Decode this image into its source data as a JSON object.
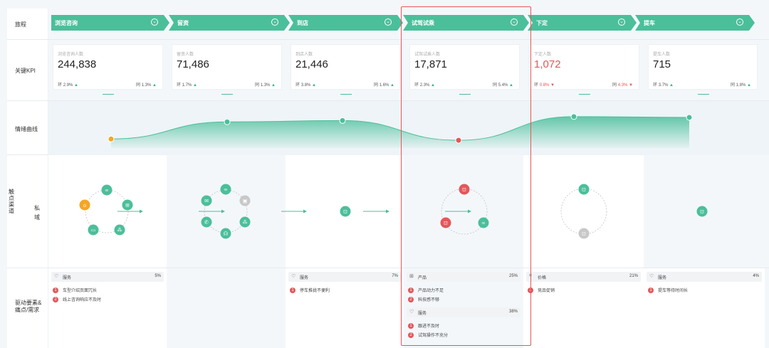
{
  "row_labels": {
    "journey": "旅程",
    "kpi": "关键KPI",
    "emotion": "情绪曲线",
    "touchpoint": "触点渠道",
    "private": "私域",
    "drivers": "驱动要素&痛点/需求"
  },
  "stages": [
    {
      "name": "浏览咨询",
      "kpi_label": "浏览咨询人数",
      "kpi_value": "244,838",
      "huan_label": "环",
      "huan": "2.9%",
      "huan_dir": "up",
      "tong_label": "同",
      "tong": "1.3%",
      "tong_dir": "up"
    },
    {
      "name": "留资",
      "kpi_label": "留资人数",
      "kpi_value": "71,486",
      "huan_label": "环",
      "huan": "1.7%",
      "huan_dir": "up",
      "tong_label": "同",
      "tong": "1.3%",
      "tong_dir": "up"
    },
    {
      "name": "到店",
      "kpi_label": "到店人数",
      "kpi_value": "21,446",
      "huan_label": "环",
      "huan": "3.8%",
      "huan_dir": "up",
      "tong_label": "同",
      "tong": "1.6%",
      "tong_dir": "up"
    },
    {
      "name": "试驾试乘",
      "kpi_label": "试驾试乘人数",
      "kpi_value": "17,871",
      "huan_label": "环",
      "huan": "2.3%",
      "huan_dir": "up",
      "tong_label": "同",
      "tong": "5.4%",
      "tong_dir": "up"
    },
    {
      "name": "下定",
      "kpi_label": "下定人数",
      "kpi_value": "1,072",
      "kpi_red": true,
      "huan_label": "环",
      "huan": "0.8%",
      "huan_dir": "down",
      "tong_label": "同",
      "tong": "4.3%",
      "tong_dir": "down"
    },
    {
      "name": "提车",
      "kpi_label": "提车人数",
      "kpi_value": "715",
      "huan_label": "环",
      "huan": "3.7%",
      "huan_dir": "up",
      "tong_label": "同",
      "tong": "1.8%",
      "tong_dir": "up"
    }
  ],
  "drivers": [
    {
      "groups": [
        {
          "icon": "heart-icon",
          "title": "服务",
          "pct": "5%",
          "items": [
            "车型介绍页面冗长",
            "线上咨询响应不及时"
          ]
        }
      ]
    },
    {
      "groups": []
    },
    {
      "groups": [
        {
          "icon": "heart-icon",
          "title": "服务",
          "pct": "7%",
          "items": [
            "停车推拢不便利"
          ]
        }
      ]
    },
    {
      "groups": [
        {
          "icon": "grid-icon",
          "title": "产品",
          "pct": "25%",
          "items": [
            "产品动力不足",
            "科技感不够"
          ]
        },
        {
          "icon": "heart-icon",
          "title": "服务",
          "pct": "38%",
          "items": [
            "跟进不及时",
            "试驾操作不充分"
          ]
        }
      ]
    },
    {
      "groups": [
        {
          "icon": "tag-icon",
          "title": "价格",
          "pct": "21%",
          "items": [
            "竞品促销"
          ]
        }
      ]
    },
    {
      "groups": [
        {
          "icon": "heart-icon",
          "title": "服务",
          "pct": "4%",
          "items": [
            "提车等待时间长"
          ]
        }
      ]
    }
  ],
  "emotion_levels": [
    0.1,
    0.75,
    0.8,
    0.05,
    0.95,
    0.92
  ],
  "colors": {
    "accent": "#4bbf9a",
    "negative": "#e2575a",
    "warning": "#f5a623",
    "neutral": "#c8c8c8",
    "highlight_border": "#e8545a"
  }
}
